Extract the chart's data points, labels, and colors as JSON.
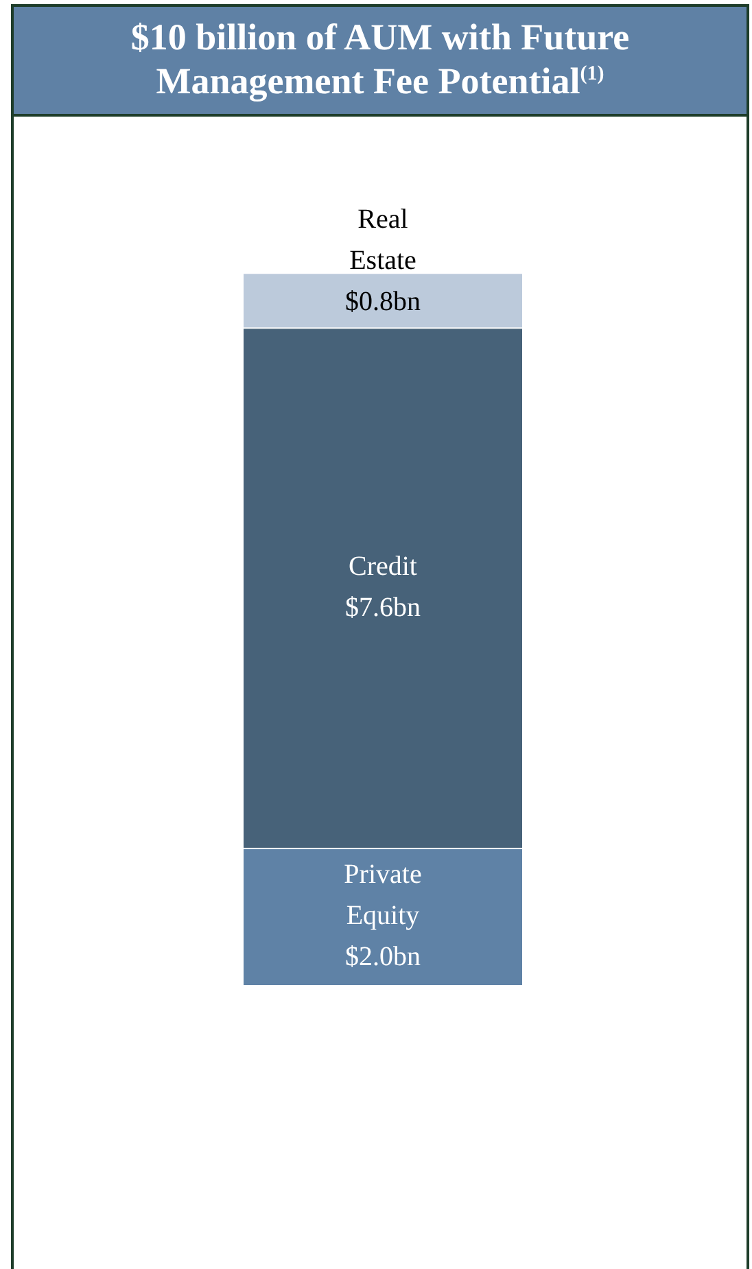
{
  "chart_data": {
    "type": "bar",
    "title": "$10 billion of AUM with Future Management Fee Potential$^{(1)}$",
    "stacked": true,
    "tick_labels": false,
    "categories": [
      null
    ],
    "series": [
      {
        "name": "Private Equity",
        "color": "#5f82a6",
        "values": [
          2.0
        ],
        "value_labels": [
          "$2.0bn"
        ]
      },
      {
        "name": "Credit",
        "color": "#476279",
        "values": [
          7.6
        ],
        "value_labels": [
          "$7.6bn"
        ]
      },
      {
        "name": "Real Estate",
        "color": "#bccadb",
        "values": [
          0.8
        ],
        "value_labels": [
          "$0.8bn"
        ]
      }
    ]
  }
}
